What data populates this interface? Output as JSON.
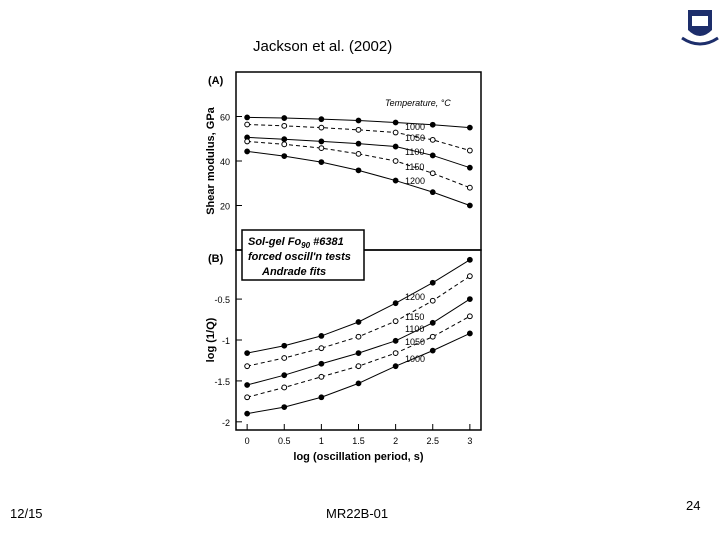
{
  "slide": {
    "title": "Jackson et al. (2002)",
    "date": "12/15",
    "footer": "MR22B-01",
    "page": "24"
  },
  "chart_data": [
    {
      "type": "line",
      "panel_label": "(A)",
      "legend_title": "Temperature, °C",
      "y_label": "Shear modulus, GPa",
      "x": [
        0,
        0.5,
        1,
        1.5,
        2,
        2.5,
        3
      ],
      "xlim": [
        -0.15,
        3.15
      ],
      "ylim": [
        0,
        80
      ],
      "yticks": [
        20,
        40,
        60
      ],
      "series": [
        {
          "name": "1000",
          "color": "#000000",
          "marker": "filled",
          "line_style": "solid",
          "values": [
            59.6,
            59.3,
            58.8,
            58.2,
            57.3,
            56.3,
            55
          ]
        },
        {
          "name": "1050",
          "color": "#000000",
          "marker": "open",
          "line_style": "dashed",
          "values": [
            56.4,
            55.8,
            55,
            54,
            52.8,
            49.5,
            44.7
          ]
        },
        {
          "name": "1100",
          "color": "#000000",
          "marker": "filled",
          "line_style": "solid",
          "values": [
            50.6,
            49.8,
            48.8,
            47.8,
            46.5,
            42.5,
            37
          ]
        },
        {
          "name": "1150",
          "color": "#000000",
          "marker": "open",
          "line_style": "dashed",
          "values": [
            48.8,
            47.5,
            45.8,
            43.2,
            40,
            34.5,
            28
          ]
        },
        {
          "name": "1200",
          "color": "#000000",
          "marker": "filled",
          "line_style": "solid",
          "values": [
            44.3,
            42.2,
            39.5,
            35.8,
            31.2,
            26,
            20
          ]
        }
      ]
    },
    {
      "type": "line",
      "panel_label": "(B)",
      "x_label": "log (oscillation period, s)",
      "y_label": "log (1/Q)",
      "annotation": {
        "line1": "Sol-gel Fo",
        "line1_sub": "90",
        "line1_end": " #6381",
        "line2": "forced oscill'n tests",
        "line3": "Andrade fits"
      },
      "x": [
        0,
        0.5,
        1,
        1.5,
        2,
        2.5,
        3
      ],
      "xlim": [
        -0.15,
        3.15
      ],
      "ylim": [
        -2.1,
        0.1
      ],
      "xticks": [
        0,
        0.5,
        1,
        1.5,
        2,
        2.5,
        3
      ],
      "yticks": [
        -2,
        -1.5,
        -1,
        -0.5
      ],
      "series": [
        {
          "name": "1200",
          "color": "#000000",
          "marker": "filled",
          "line_style": "solid",
          "values": [
            -1.16,
            -1.07,
            -0.95,
            -0.78,
            -0.55,
            -0.3,
            -0.02
          ]
        },
        {
          "name": "1150",
          "color": "#000000",
          "marker": "open",
          "line_style": "dashed",
          "values": [
            -1.32,
            -1.22,
            -1.1,
            -0.96,
            -0.77,
            -0.52,
            -0.22
          ]
        },
        {
          "name": "1100",
          "color": "#000000",
          "marker": "filled",
          "line_style": "solid",
          "values": [
            -1.55,
            -1.43,
            -1.29,
            -1.16,
            -1.01,
            -0.79,
            -0.5
          ]
        },
        {
          "name": "1050",
          "color": "#000000",
          "marker": "open",
          "line_style": "dashed",
          "values": [
            -1.7,
            -1.58,
            -1.45,
            -1.32,
            -1.16,
            -0.96,
            -0.71
          ]
        },
        {
          "name": "1000",
          "color": "#000000",
          "marker": "filled",
          "line_style": "solid",
          "values": [
            -1.9,
            -1.82,
            -1.7,
            -1.53,
            -1.32,
            -1.13,
            -0.92
          ]
        }
      ]
    }
  ]
}
